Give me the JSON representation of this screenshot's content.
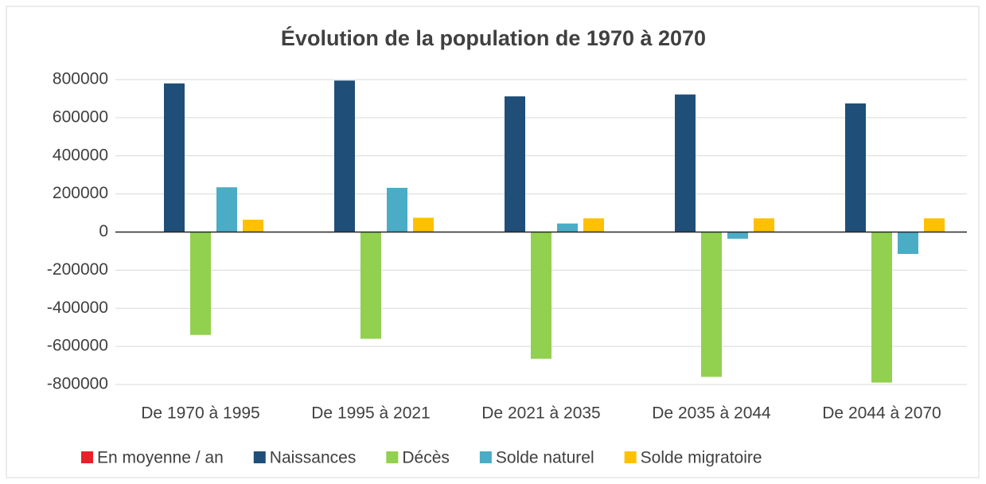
{
  "chart_data": {
    "type": "bar",
    "title": "Évolution de la population de 1970 à 2070",
    "categories": [
      "De 1970 à 1995",
      "De 1995 à 2021",
      "De 2021 à 2035",
      "De 2035 à 2044",
      "De 2044 à 2070"
    ],
    "series": [
      {
        "name": "En moyenne / an",
        "color": "#e8202a",
        "values": [
          null,
          null,
          null,
          null,
          null
        ]
      },
      {
        "name": "Naissances",
        "color": "#1f4e79",
        "values": [
          780000,
          795000,
          712000,
          722000,
          675000
        ]
      },
      {
        "name": "Décès",
        "color": "#92d050",
        "values": [
          -540000,
          -560000,
          -665000,
          -760000,
          -790000
        ]
      },
      {
        "name": "Solde naturel",
        "color": "#4bacc6",
        "values": [
          235000,
          232000,
          45000,
          -35000,
          -115000
        ]
      },
      {
        "name": "Solde migratoire",
        "color": "#ffc000",
        "values": [
          65000,
          75000,
          72000,
          72000,
          72000
        ]
      }
    ],
    "ylim": [
      -800000,
      800000
    ],
    "yticks": [
      -800000,
      -600000,
      -400000,
      -200000,
      0,
      200000,
      400000,
      600000,
      800000
    ],
    "grid": true,
    "legend": "bottom"
  }
}
